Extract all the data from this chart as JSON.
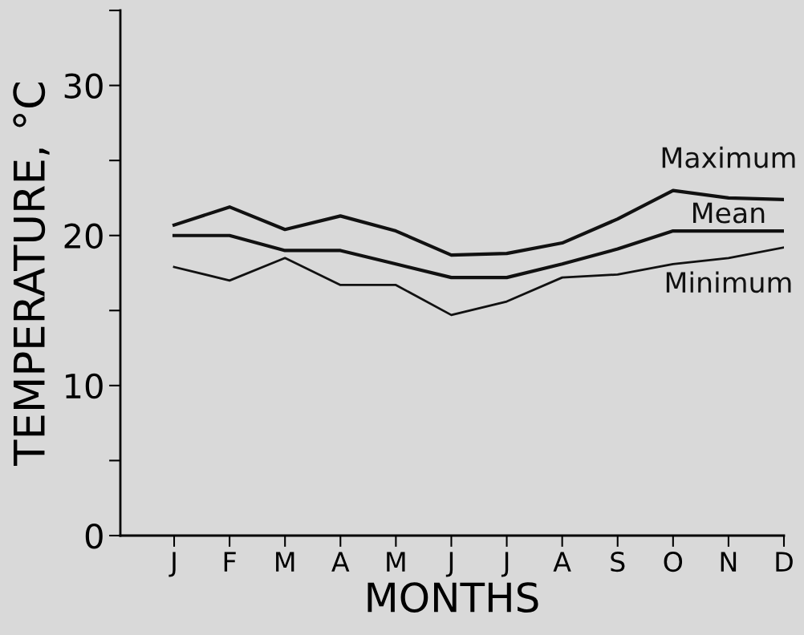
{
  "chart_data": {
    "type": "line",
    "xlabel": "MONTHS",
    "ylabel": "TEMPERATURE, °C",
    "categories": [
      "J",
      "F",
      "M",
      "A",
      "M",
      "J",
      "J",
      "A",
      "S",
      "O",
      "N",
      "D"
    ],
    "series": [
      {
        "name": "Maximum",
        "color": "#111111",
        "values": [
          20.7,
          21.9,
          20.4,
          21.3,
          20.3,
          18.7,
          18.8,
          19.5,
          21.1,
          23.0,
          22.5,
          22.4
        ]
      },
      {
        "name": "Mean",
        "color": "#111111",
        "values": [
          20.0,
          20.0,
          19.0,
          19.0,
          18.1,
          17.2,
          17.2,
          18.1,
          19.1,
          20.3,
          20.3,
          20.3
        ]
      },
      {
        "name": "Minimum",
        "color": "#111111",
        "values": [
          17.9,
          17.0,
          18.5,
          16.7,
          16.7,
          14.7,
          15.6,
          17.2,
          17.4,
          18.1,
          18.5,
          19.2
        ]
      }
    ],
    "ylim": [
      0,
      35
    ],
    "yticks": [
      0,
      {
        "value": 5,
        "label": null
      },
      10,
      {
        "value": 15,
        "label": null
      },
      20,
      {
        "value": 25,
        "label": null
      },
      30,
      {
        "value": 35,
        "label": null
      }
    ],
    "grid": false,
    "legend": false,
    "marker": "none",
    "line_style": "solid"
  }
}
